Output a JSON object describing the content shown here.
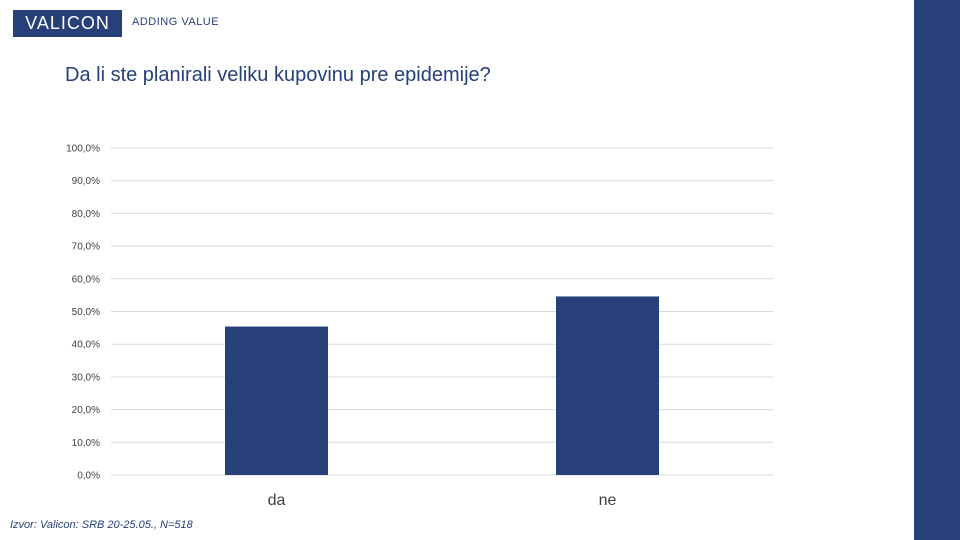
{
  "brand": {
    "logo_text": "VALICON",
    "tagline": "ADDING VALUE"
  },
  "colors": {
    "brand": "#27407a",
    "bar": "#27407a",
    "grid": "#d9d9d9",
    "text": "#404040"
  },
  "chart_data": {
    "type": "bar",
    "title": "Da li ste planirali veliku kupovinu pre epidemije?",
    "categories": [
      "da",
      "ne"
    ],
    "values": [
      45.4,
      54.6
    ],
    "ylim": [
      0,
      100
    ],
    "yticks": [
      "0,0%",
      "10,0%",
      "20,0%",
      "30,0%",
      "40,0%",
      "50,0%",
      "60,0%",
      "70,0%",
      "80,0%",
      "90,0%",
      "100,0%"
    ],
    "grid": true,
    "xlabel": "",
    "ylabel": ""
  },
  "footer": {
    "source": "Izvor: Valicon: SRB 20-25.05., N=518"
  }
}
